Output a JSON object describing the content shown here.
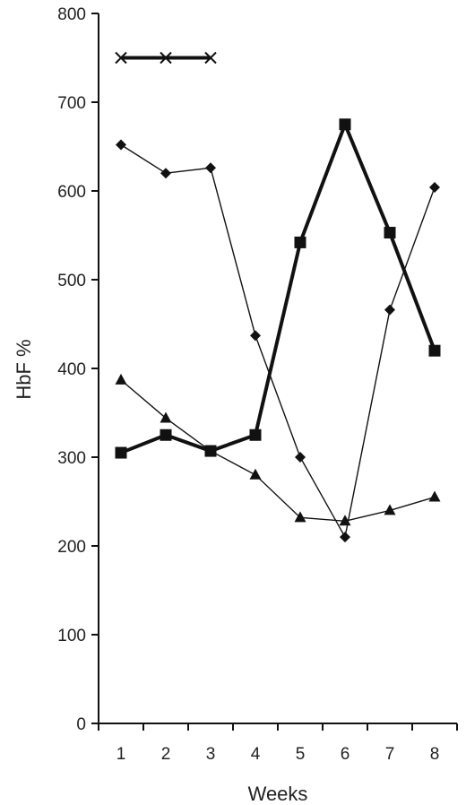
{
  "chart_data": {
    "type": "line",
    "xlabel": "Weeks",
    "ylabel": "HbF %",
    "x": [
      1,
      2,
      3,
      4,
      5,
      6,
      7,
      8
    ],
    "xlim": [
      0.5,
      8.5
    ],
    "ylim": [
      0,
      800
    ],
    "yticks": [
      0,
      100,
      200,
      300,
      400,
      500,
      600,
      700,
      800
    ],
    "xticks": [
      1,
      2,
      3,
      4,
      5,
      6,
      7,
      8
    ],
    "grid": false,
    "legend": "none",
    "series": [
      {
        "marker": "square",
        "line": "thick",
        "x": [
          1,
          2,
          3,
          4,
          5,
          6,
          7,
          8
        ],
        "values": [
          305,
          325,
          307,
          325,
          542,
          675,
          553,
          420
        ]
      },
      {
        "marker": "diamond",
        "line": "thin",
        "x": [
          1,
          2,
          3,
          4,
          5,
          6,
          7,
          8
        ],
        "values": [
          652,
          620,
          626,
          437,
          300,
          210,
          466,
          604
        ]
      },
      {
        "marker": "triangle",
        "line": "thin",
        "x": [
          1,
          2,
          3,
          4,
          5,
          6,
          7,
          8
        ],
        "values": [
          387,
          344,
          307,
          280,
          232,
          228,
          240,
          255
        ]
      },
      {
        "marker": "x",
        "line": "thick",
        "x": [
          1,
          2,
          3
        ],
        "values": [
          750,
          750,
          750
        ]
      }
    ]
  }
}
